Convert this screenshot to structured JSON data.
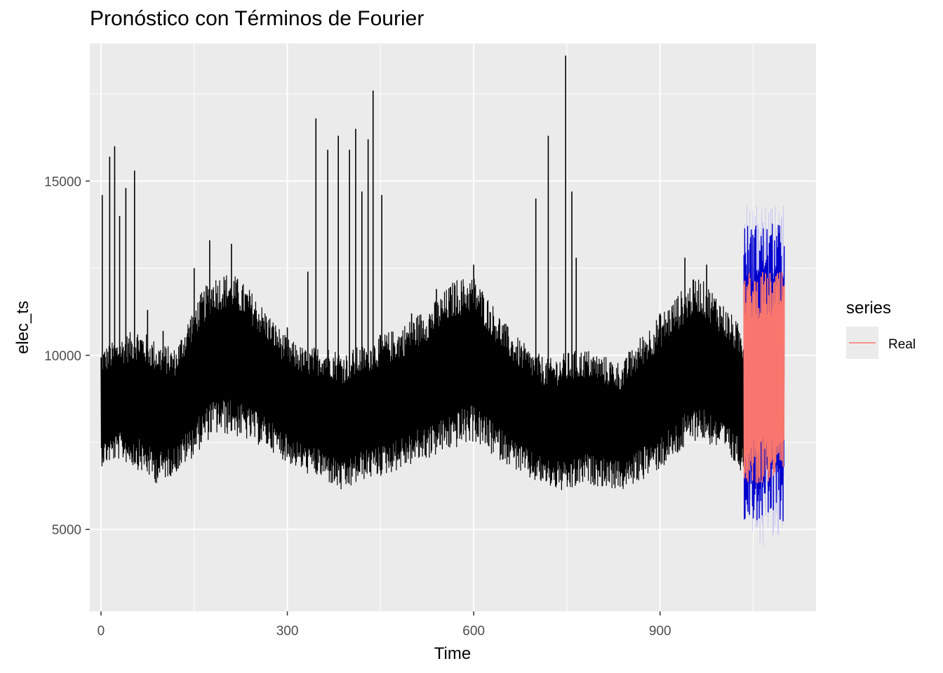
{
  "chart_data": {
    "type": "line",
    "title": "Pronóstico con Términos de Fourier",
    "xlabel": "Time",
    "ylabel": "elec_ts",
    "xlim": [
      -18,
      1151
    ],
    "ylim": [
      2650,
      18950
    ],
    "x_ticks": [
      0,
      300,
      600,
      900
    ],
    "x_tick_labels": [
      "0",
      "300",
      "600",
      "900"
    ],
    "y_ticks": [
      5000,
      10000,
      15000
    ],
    "y_tick_labels": [
      "5000",
      "10000",
      "15000"
    ],
    "grid": true,
    "legend": {
      "title": "series",
      "position": "right",
      "entries": [
        {
          "name": "Real",
          "color": "#F8766D"
        }
      ]
    },
    "series": [
      {
        "name": "elec_ts",
        "color": "#000000",
        "x_range": [
          0,
          1035
        ],
        "envelope_x": [
          0,
          30,
          60,
          90,
          120,
          150,
          180,
          210,
          240,
          270,
          300,
          330,
          360,
          390,
          420,
          450,
          480,
          510,
          540,
          570,
          600,
          630,
          660,
          690,
          720,
          750,
          780,
          810,
          840,
          870,
          900,
          930,
          960,
          990,
          1035
        ],
        "envelope_low": [
          6800,
          7000,
          6700,
          6300,
          6600,
          7100,
          7700,
          7700,
          7500,
          7300,
          6900,
          6600,
          6400,
          6000,
          6400,
          6500,
          6700,
          6900,
          7100,
          7300,
          7500,
          7100,
          6800,
          6400,
          6200,
          6000,
          6300,
          6200,
          6100,
          6400,
          6700,
          7100,
          7600,
          7300,
          6600
        ],
        "envelope_high": [
          10200,
          10500,
          10800,
          10400,
          10200,
          11500,
          12300,
          12400,
          11900,
          11200,
          10500,
          10200,
          10300,
          10100,
          10300,
          10600,
          10800,
          11200,
          11600,
          12200,
          12300,
          11500,
          10700,
          10200,
          9900,
          10100,
          10200,
          10000,
          9800,
          10600,
          11200,
          11800,
          12300,
          11800,
          10700
        ],
        "peaks": [
          {
            "x": 2,
            "y": 14600
          },
          {
            "x": 14,
            "y": 15700
          },
          {
            "x": 22,
            "y": 16000
          },
          {
            "x": 30,
            "y": 14000
          },
          {
            "x": 40,
            "y": 14800
          },
          {
            "x": 54,
            "y": 15300
          },
          {
            "x": 75,
            "y": 11300
          },
          {
            "x": 100,
            "y": 10700
          },
          {
            "x": 150,
            "y": 12500
          },
          {
            "x": 175,
            "y": 13300
          },
          {
            "x": 210,
            "y": 13200
          },
          {
            "x": 300,
            "y": 10800
          },
          {
            "x": 333,
            "y": 12400
          },
          {
            "x": 346,
            "y": 16800
          },
          {
            "x": 365,
            "y": 15900
          },
          {
            "x": 382,
            "y": 16300
          },
          {
            "x": 400,
            "y": 15900
          },
          {
            "x": 410,
            "y": 16500
          },
          {
            "x": 420,
            "y": 14700
          },
          {
            "x": 430,
            "y": 16200
          },
          {
            "x": 438,
            "y": 17600
          },
          {
            "x": 452,
            "y": 14600
          },
          {
            "x": 500,
            "y": 11200
          },
          {
            "x": 540,
            "y": 11900
          },
          {
            "x": 600,
            "y": 12600
          },
          {
            "x": 700,
            "y": 14500
          },
          {
            "x": 720,
            "y": 16300
          },
          {
            "x": 748,
            "y": 18600
          },
          {
            "x": 758,
            "y": 14700
          },
          {
            "x": 765,
            "y": 12800
          },
          {
            "x": 850,
            "y": 10100
          },
          {
            "x": 900,
            "y": 11200
          },
          {
            "x": 940,
            "y": 12800
          },
          {
            "x": 975,
            "y": 12600
          },
          {
            "x": 1010,
            "y": 11000
          }
        ]
      },
      {
        "name": "forecast",
        "color": "#0000CD",
        "x_range": [
          1035,
          1100
        ],
        "low": 5200,
        "high": 13800
      },
      {
        "name": "interval",
        "color": "#6B6BFF",
        "x_range": [
          1035,
          1100
        ],
        "low": 4500,
        "high": 14300
      },
      {
        "name": "Real",
        "color": "#F8766D",
        "x_range": [
          1035,
          1100
        ],
        "low": 6300,
        "high": 12400
      }
    ]
  }
}
